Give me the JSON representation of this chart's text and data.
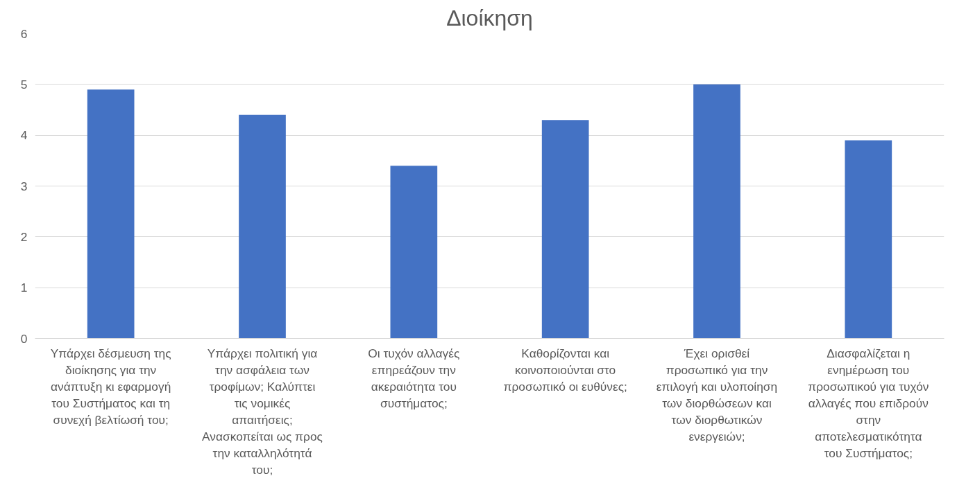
{
  "chart_data": {
    "type": "bar",
    "title": "Διοίκηση",
    "categories": [
      "Υπάρχει δέσμευση της διοίκησης για την ανάπτυξη κι εφαρμογή του Συστήματος και τη συνεχή βελτίωσή του;",
      "Υπάρχει πολιτική για την ασφάλεια των τροφίμων; Καλύπτει τις νομικές απαιτήσεις; Ανασκοπείται ως προς την καταλληλότητά του;",
      "Οι τυχόν αλλαγές επηρεάζουν την ακεραιότητα του συστήματος;",
      "Καθορίζονται και κοινοποιούνται στο προσωπικό οι ευθύνες;",
      "Έχει ορισθεί προσωπικό για την επιλογή και υλοποίηση των διορθώσεων και των διορθωτικών ενεργειών;",
      "Διασφαλίζεται η ενημέρωση του προσωπικού για τυχόν αλλαγές που επιδρούν στην αποτελεσματικότητα του Συστήματος;"
    ],
    "values": [
      4.9,
      4.4,
      3.4,
      4.3,
      5.0,
      3.9
    ],
    "color": "#4472c4",
    "ylim": [
      0,
      6
    ],
    "yticks": [
      0,
      1,
      2,
      3,
      4,
      5,
      6
    ],
    "grid": "y"
  }
}
